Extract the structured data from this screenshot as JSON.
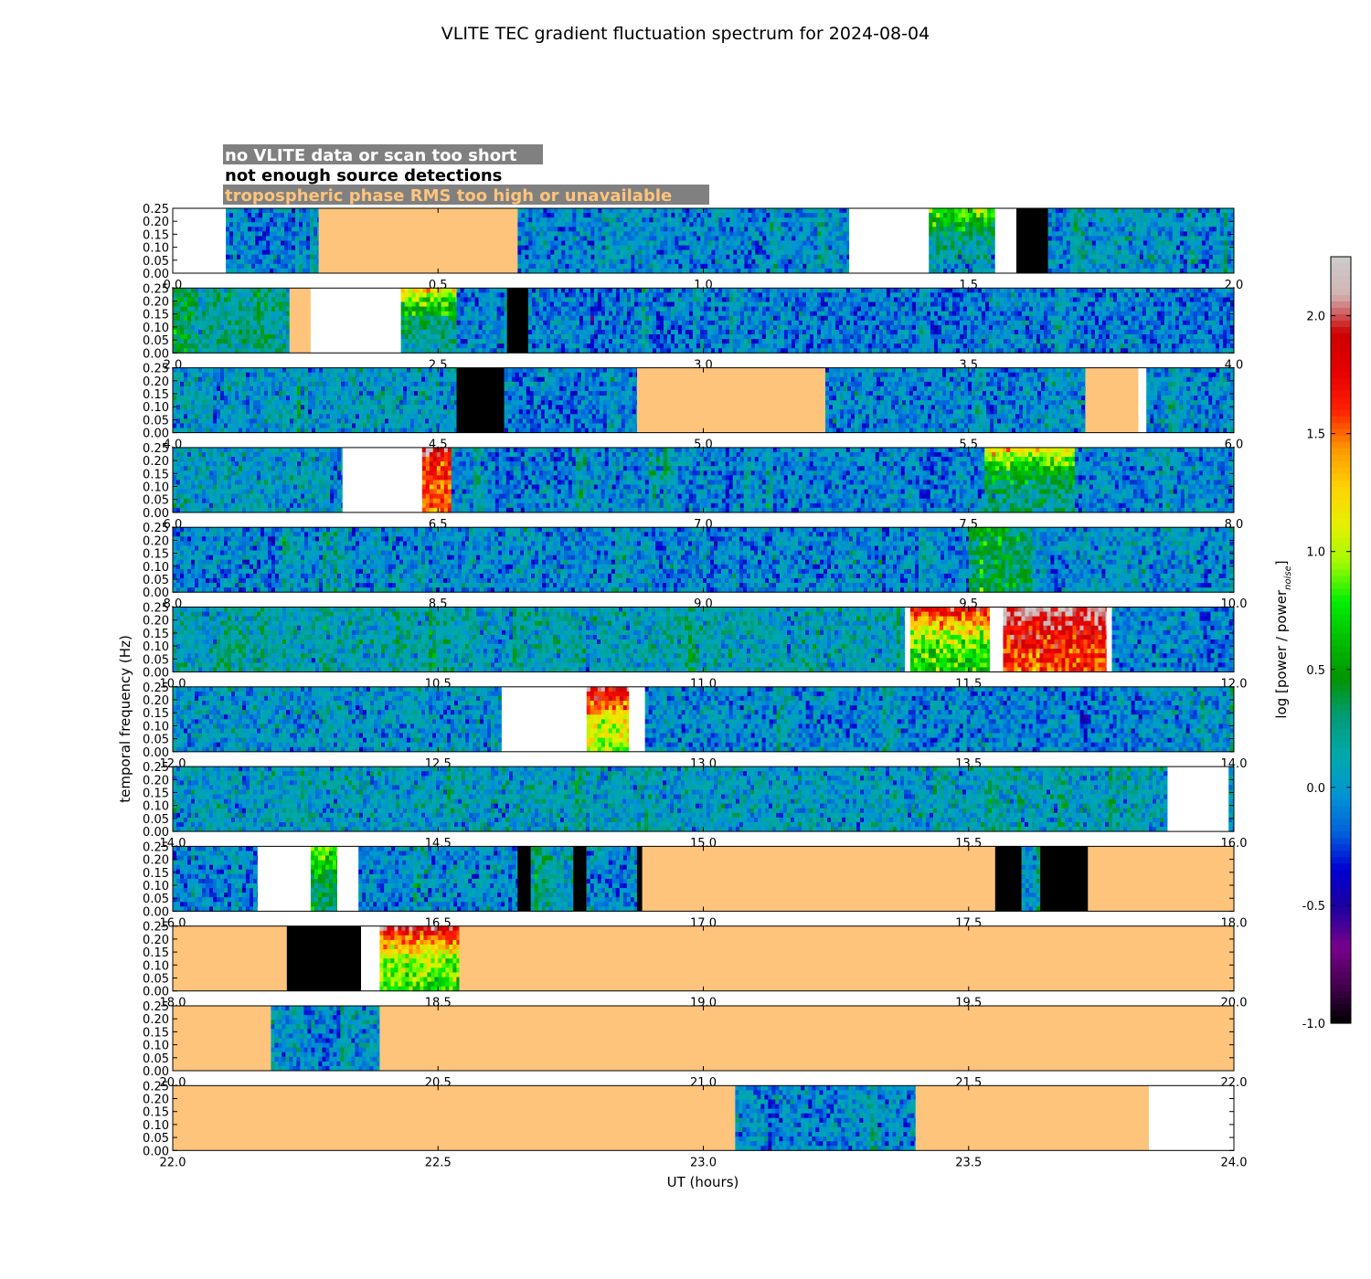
{
  "chart_data": {
    "type": "heatmap",
    "title": "VLITE TEC gradient fluctuation spectrum for 2024-08-04",
    "xlabel": "UT (hours)",
    "ylabel": "temporal frequency (Hz)",
    "colorbar": {
      "label": "log [power / power",
      "label_sub": "noise",
      "label_end": "]",
      "range": [
        -1.0,
        2.25
      ],
      "ticks": [
        "-1.0",
        "-0.5",
        "0.0",
        "0.5",
        "1.0",
        "1.5",
        "2.0"
      ],
      "tick_values": [
        -1.0,
        -0.5,
        0.0,
        0.5,
        1.0,
        1.5,
        2.0
      ],
      "colormap": "nipy_spectral"
    },
    "flag_legend": [
      {
        "text": "no VLITE data or scan too short",
        "color": "#ffffff",
        "meaning": "white"
      },
      {
        "text": "not enough source detections",
        "color": "#000000",
        "meaning": "black"
      },
      {
        "text": "tropospheric phase RMS too high or unavailable",
        "color": "#fec47c",
        "meaning": "orange"
      }
    ],
    "colors": {
      "no_data": "#ffffff",
      "few_detections": "#000000",
      "tropo": "#fec47c",
      "legend_bg": "#808080"
    },
    "y_ticks": [
      "0.00",
      "0.05",
      "0.10",
      "0.15",
      "0.20",
      "0.25"
    ],
    "y_tick_values": [
      0,
      0.05,
      0.1,
      0.15,
      0.2,
      0.25
    ],
    "ylim": [
      0,
      0.25
    ],
    "panels": [
      {
        "xlim": [
          0,
          2
        ],
        "xticks": [
          "0.0",
          "0.5",
          "1.0",
          "1.5",
          "2.0"
        ],
        "segments": [
          {
            "start": 0,
            "end": 0.1,
            "type": "white"
          },
          {
            "start": 0.1,
            "end": 0.275,
            "type": "data",
            "level": -0.1
          },
          {
            "start": 0.275,
            "end": 0.65,
            "type": "orange"
          },
          {
            "start": 0.65,
            "end": 1.275,
            "type": "data",
            "level": -0.05
          },
          {
            "start": 1.275,
            "end": 1.425,
            "type": "white"
          },
          {
            "start": 1.425,
            "end": 1.55,
            "type": "data",
            "level": 0.05,
            "hot": 0.9
          },
          {
            "start": 1.55,
            "end": 1.59,
            "type": "white"
          },
          {
            "start": 1.59,
            "end": 1.65,
            "type": "black"
          },
          {
            "start": 1.65,
            "end": 2.0,
            "type": "data",
            "level": 0.0
          }
        ]
      },
      {
        "xlim": [
          2,
          4
        ],
        "xticks": [
          "2.0",
          "2.5",
          "3.0",
          "3.5",
          "4.0"
        ],
        "segments": [
          {
            "start": 2.0,
            "end": 2.22,
            "type": "data",
            "level": 0.2
          },
          {
            "start": 2.22,
            "end": 2.26,
            "type": "orange"
          },
          {
            "start": 2.26,
            "end": 2.43,
            "type": "white"
          },
          {
            "start": 2.43,
            "end": 2.535,
            "type": "data",
            "level": 0.15,
            "hot": 1.2
          },
          {
            "start": 2.535,
            "end": 2.63,
            "type": "data",
            "level": -0.05
          },
          {
            "start": 2.63,
            "end": 2.67,
            "type": "black"
          },
          {
            "start": 2.67,
            "end": 4.0,
            "type": "data",
            "level": -0.1
          }
        ]
      },
      {
        "xlim": [
          4,
          6
        ],
        "xticks": [
          "4.0",
          "4.5",
          "5.0",
          "5.5",
          "6.0"
        ],
        "segments": [
          {
            "start": 4.0,
            "end": 4.535,
            "type": "data",
            "level": 0.05
          },
          {
            "start": 4.535,
            "end": 4.625,
            "type": "black"
          },
          {
            "start": 4.625,
            "end": 4.875,
            "type": "data",
            "level": -0.1
          },
          {
            "start": 4.875,
            "end": 5.23,
            "type": "orange"
          },
          {
            "start": 5.23,
            "end": 5.72,
            "type": "data",
            "level": -0.05
          },
          {
            "start": 5.72,
            "end": 5.82,
            "type": "orange"
          },
          {
            "start": 5.82,
            "end": 5.835,
            "type": "white"
          },
          {
            "start": 5.835,
            "end": 6.0,
            "type": "data",
            "level": -0.05
          }
        ]
      },
      {
        "xlim": [
          6,
          8
        ],
        "xticks": [
          "6.0",
          "6.5",
          "7.0",
          "7.5",
          "8.0"
        ],
        "segments": [
          {
            "start": 6.0,
            "end": 6.32,
            "type": "data",
            "level": 0.05
          },
          {
            "start": 6.32,
            "end": 6.47,
            "type": "white"
          },
          {
            "start": 6.47,
            "end": 6.525,
            "type": "data",
            "level": 1.5,
            "hot": 1.9
          },
          {
            "start": 6.525,
            "end": 7.53,
            "type": "data",
            "level": -0.05
          },
          {
            "start": 7.53,
            "end": 7.7,
            "type": "data",
            "level": 0.2,
            "hot": 1.2
          },
          {
            "start": 7.7,
            "end": 8.0,
            "type": "data",
            "level": -0.05
          }
        ]
      },
      {
        "xlim": [
          8,
          10
        ],
        "xticks": [
          "8.0",
          "8.5",
          "9.0",
          "9.5",
          "10.0"
        ],
        "segments": [
          {
            "start": 8.0,
            "end": 9.5,
            "type": "data",
            "level": -0.05
          },
          {
            "start": 9.5,
            "end": 9.62,
            "type": "data",
            "level": 0.3
          },
          {
            "start": 9.62,
            "end": 10.0,
            "type": "data",
            "level": 0.0
          }
        ]
      },
      {
        "xlim": [
          10,
          12
        ],
        "xticks": [
          "10.0",
          "10.5",
          "11.0",
          "11.5",
          "12.0"
        ],
        "segments": [
          {
            "start": 10.0,
            "end": 11.38,
            "type": "data",
            "level": 0.1
          },
          {
            "start": 11.38,
            "end": 11.39,
            "type": "white"
          },
          {
            "start": 11.39,
            "end": 11.54,
            "type": "data",
            "level": 0.7,
            "hot": 1.8
          },
          {
            "start": 11.54,
            "end": 11.565,
            "type": "white"
          },
          {
            "start": 11.565,
            "end": 11.76,
            "type": "data",
            "level": 1.6,
            "hot": 2.1
          },
          {
            "start": 11.76,
            "end": 11.77,
            "type": "white"
          },
          {
            "start": 11.77,
            "end": 12.0,
            "type": "data",
            "level": -0.05
          }
        ]
      },
      {
        "xlim": [
          12,
          14
        ],
        "xticks": [
          "12.0",
          "12.5",
          "13.0",
          "13.5",
          "14.0"
        ],
        "segments": [
          {
            "start": 12.0,
            "end": 12.62,
            "type": "data",
            "level": 0.0
          },
          {
            "start": 12.62,
            "end": 12.78,
            "type": "white"
          },
          {
            "start": 12.78,
            "end": 12.86,
            "type": "data",
            "level": 1.0,
            "hot": 1.9
          },
          {
            "start": 12.86,
            "end": 12.89,
            "type": "white"
          },
          {
            "start": 12.89,
            "end": 14.0,
            "type": "data",
            "level": -0.05
          }
        ]
      },
      {
        "xlim": [
          14,
          16
        ],
        "xticks": [
          "14.0",
          "14.5",
          "15.0",
          "15.5",
          "16.0"
        ],
        "segments": [
          {
            "start": 14.0,
            "end": 15.875,
            "type": "data",
            "level": 0.05
          },
          {
            "start": 15.875,
            "end": 15.99,
            "type": "white"
          },
          {
            "start": 15.99,
            "end": 16.0,
            "type": "data",
            "level": 0.0
          }
        ]
      },
      {
        "xlim": [
          16,
          18
        ],
        "xticks": [
          "16.0",
          "16.5",
          "17.0",
          "17.5",
          "18.0"
        ],
        "segments": [
          {
            "start": 16.0,
            "end": 16.16,
            "type": "data",
            "level": -0.1
          },
          {
            "start": 16.16,
            "end": 16.26,
            "type": "white"
          },
          {
            "start": 16.26,
            "end": 16.31,
            "type": "data",
            "level": 0.3,
            "hot": 1.0
          },
          {
            "start": 16.31,
            "end": 16.35,
            "type": "white"
          },
          {
            "start": 16.35,
            "end": 16.65,
            "type": "data",
            "level": -0.05
          },
          {
            "start": 16.65,
            "end": 16.675,
            "type": "black"
          },
          {
            "start": 16.675,
            "end": 16.755,
            "type": "data",
            "level": 0.1
          },
          {
            "start": 16.755,
            "end": 16.78,
            "type": "black"
          },
          {
            "start": 16.78,
            "end": 16.875,
            "type": "data",
            "level": -0.05
          },
          {
            "start": 16.875,
            "end": 16.885,
            "type": "black"
          },
          {
            "start": 16.885,
            "end": 17.55,
            "type": "orange"
          },
          {
            "start": 17.55,
            "end": 17.6,
            "type": "black"
          },
          {
            "start": 17.6,
            "end": 17.635,
            "type": "data",
            "level": 0.0
          },
          {
            "start": 17.635,
            "end": 17.725,
            "type": "black"
          },
          {
            "start": 17.725,
            "end": 18.0,
            "type": "orange"
          }
        ]
      },
      {
        "xlim": [
          18,
          20
        ],
        "xticks": [
          "18.0",
          "18.5",
          "19.0",
          "19.5",
          "20.0"
        ],
        "segments": [
          {
            "start": 18.0,
            "end": 18.215,
            "type": "orange"
          },
          {
            "start": 18.215,
            "end": 18.355,
            "type": "black"
          },
          {
            "start": 18.355,
            "end": 18.39,
            "type": "white"
          },
          {
            "start": 18.39,
            "end": 18.54,
            "type": "data",
            "level": 0.8,
            "hot": 1.9
          },
          {
            "start": 18.54,
            "end": 20.0,
            "type": "orange"
          }
        ]
      },
      {
        "xlim": [
          20,
          22
        ],
        "xticks": [
          "20.0",
          "20.5",
          "21.0",
          "21.5",
          "22.0"
        ],
        "segments": [
          {
            "start": 20.0,
            "end": 20.185,
            "type": "orange"
          },
          {
            "start": 20.185,
            "end": 20.39,
            "type": "data",
            "level": 0.0
          },
          {
            "start": 20.39,
            "end": 22.0,
            "type": "orange"
          }
        ]
      },
      {
        "xlim": [
          22,
          24
        ],
        "xticks": [
          "22.0",
          "22.5",
          "23.0",
          "23.5",
          "24.0"
        ],
        "segments": [
          {
            "start": 22.0,
            "end": 23.06,
            "type": "orange"
          },
          {
            "start": 23.06,
            "end": 23.4,
            "type": "data",
            "level": -0.05
          },
          {
            "start": 23.4,
            "end": 23.84,
            "type": "orange"
          },
          {
            "start": 23.84,
            "end": 24.0,
            "type": "white"
          }
        ]
      }
    ]
  }
}
